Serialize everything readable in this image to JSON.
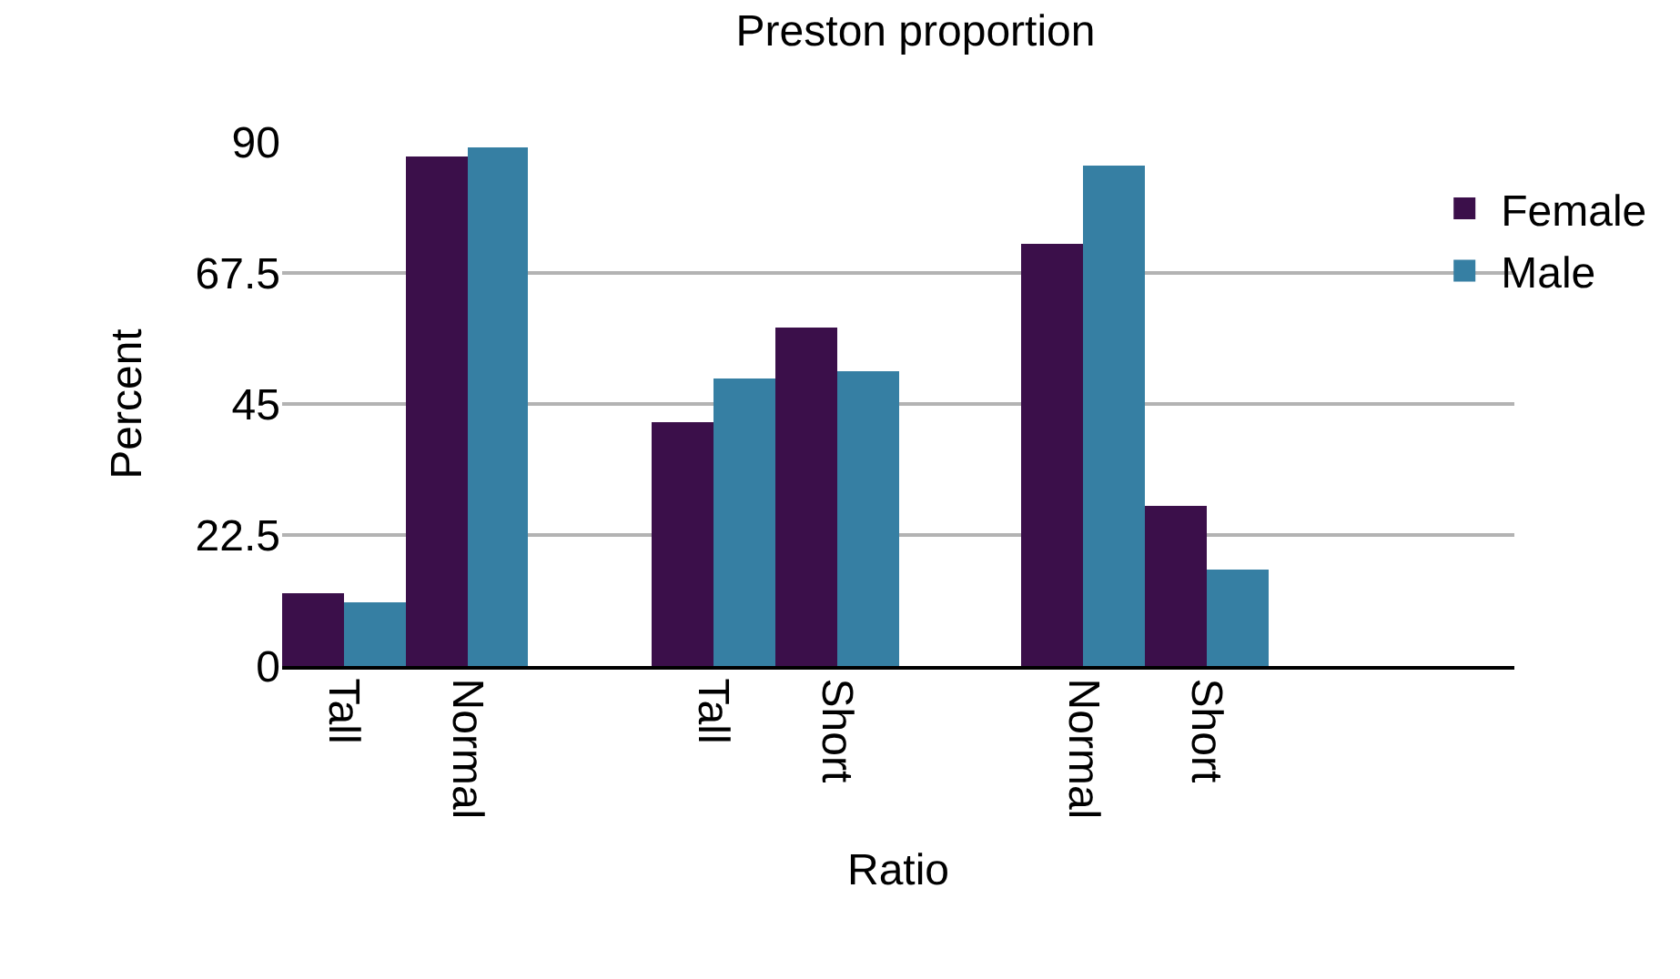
{
  "chart_data": {
    "type": "bar",
    "title": "Preston proportion",
    "xlabel": "Ratio",
    "ylabel": "Percent",
    "categories": [
      "Tall",
      "Normal",
      null,
      "Tall",
      "Short",
      null,
      "Normal",
      "Short",
      null,
      null
    ],
    "series": [
      {
        "name": "Female",
        "color": "#3b0f4a",
        "values": [
          12.5,
          87.5,
          null,
          42,
          58,
          null,
          72.5,
          27.5,
          null,
          null
        ]
      },
      {
        "name": "Male",
        "color": "#367fa3",
        "values": [
          11,
          89,
          null,
          49.5,
          50.5,
          null,
          86,
          16.5,
          null,
          null
        ]
      }
    ],
    "ylim": [
      0,
      90
    ],
    "yticks": [
      0,
      22.5,
      45,
      67.5,
      90
    ],
    "grid": "y",
    "legend": "top right"
  }
}
